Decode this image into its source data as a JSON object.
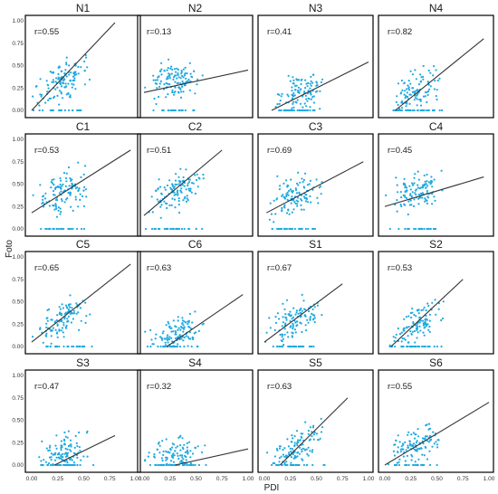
{
  "chart_data": {
    "type": "scatter",
    "xlabel": "PDI",
    "ylabel": "Foto",
    "xlim": [
      0,
      1
    ],
    "ylim": [
      0,
      1
    ],
    "xticks": [
      "0.00",
      "0.25",
      "0.50",
      "0.75",
      "1.00"
    ],
    "yticks": [
      "0.00",
      "0.25",
      "0.50",
      "0.75",
      "1.00"
    ],
    "colors": {
      "points": "#1fa9e0",
      "line": "#333333",
      "frame": "#000000"
    },
    "panels": [
      {
        "title": "N1",
        "r": "r=0.55",
        "trend": {
          "x0": 0.0,
          "y0": 0.0,
          "x1": 0.8,
          "y1": 0.98
        }
      },
      {
        "title": "N2",
        "r": "r=0.13",
        "trend": {
          "x0": 0.0,
          "y0": 0.2,
          "x1": 1.0,
          "y1": 0.45
        }
      },
      {
        "title": "N3",
        "r": "r=0.41",
        "trend": {
          "x0": 0.07,
          "y0": 0.0,
          "x1": 1.0,
          "y1": 0.54
        }
      },
      {
        "title": "N4",
        "r": "r=0.82",
        "trend": {
          "x0": 0.1,
          "y0": 0.0,
          "x1": 0.95,
          "y1": 0.8
        }
      },
      {
        "title": "C1",
        "r": "r=0.53",
        "trend": {
          "x0": 0.0,
          "y0": 0.18,
          "x1": 0.95,
          "y1": 0.88
        }
      },
      {
        "title": "C2",
        "r": "r=0.51",
        "trend": {
          "x0": 0.0,
          "y0": 0.15,
          "x1": 0.75,
          "y1": 0.88
        }
      },
      {
        "title": "C3",
        "r": "r=0.69",
        "trend": {
          "x0": 0.02,
          "y0": 0.18,
          "x1": 0.95,
          "y1": 0.75
        }
      },
      {
        "title": "C4",
        "r": "r=0.45",
        "trend": {
          "x0": 0.0,
          "y0": 0.25,
          "x1": 0.95,
          "y1": 0.58
        }
      },
      {
        "title": "C5",
        "r": "r=0.65",
        "trend": {
          "x0": 0.0,
          "y0": 0.05,
          "x1": 0.95,
          "y1": 0.92
        }
      },
      {
        "title": "C6",
        "r": "r=0.63",
        "trend": {
          "x0": 0.22,
          "y0": 0.0,
          "x1": 0.95,
          "y1": 0.58
        }
      },
      {
        "title": "S1",
        "r": "r=0.67",
        "trend": {
          "x0": 0.0,
          "y0": 0.05,
          "x1": 0.75,
          "y1": 0.7
        }
      },
      {
        "title": "S2",
        "r": "r=0.53",
        "trend": {
          "x0": 0.06,
          "y0": 0.0,
          "x1": 0.75,
          "y1": 0.75
        }
      },
      {
        "title": "S3",
        "r": "r=0.47",
        "trend": {
          "x0": 0.22,
          "y0": 0.0,
          "x1": 0.8,
          "y1": 0.33
        }
      },
      {
        "title": "S4",
        "r": "r=0.32",
        "trend": {
          "x0": 0.3,
          "y0": 0.0,
          "x1": 1.0,
          "y1": 0.18
        }
      },
      {
        "title": "S5",
        "r": "r=0.63",
        "trend": {
          "x0": 0.15,
          "y0": 0.0,
          "x1": 0.8,
          "y1": 0.75
        }
      },
      {
        "title": "S6",
        "r": "r=0.55",
        "trend": {
          "x0": 0.0,
          "y0": 0.0,
          "x1": 1.0,
          "y1": 0.7
        }
      }
    ]
  }
}
